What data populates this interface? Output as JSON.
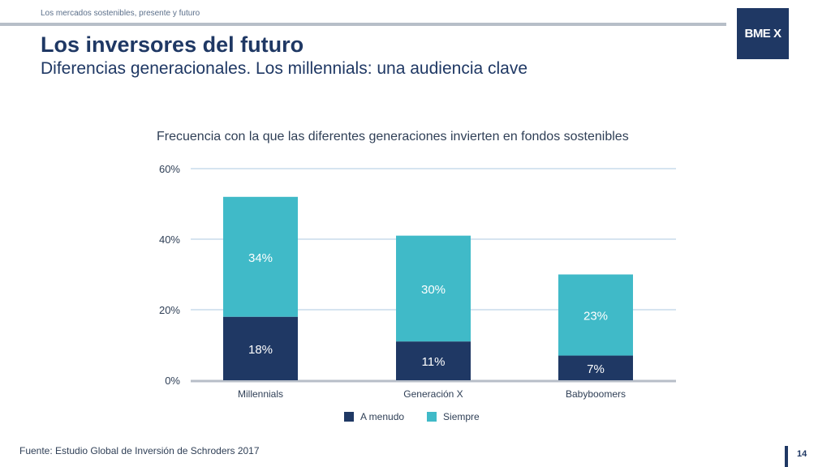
{
  "header": {
    "caption": "Los mercados sostenibles, presente y futuro",
    "title": "Los inversores del futuro",
    "subtitle": "Diferencias generacionales. Los millennials: una audiencia clave",
    "logo_text": "BME X"
  },
  "chart_data": {
    "type": "bar",
    "stacked": true,
    "title": "Frecuencia con la que las diferentes generaciones invierten en fondos sostenibles",
    "categories": [
      "Millennials",
      "Generación X",
      "Babyboomers"
    ],
    "series": [
      {
        "name": "A menudo",
        "values": [
          18,
          11,
          7
        ],
        "labels": [
          "18%",
          "11%",
          "7%"
        ],
        "color": "#1f3864"
      },
      {
        "name": "Siempre",
        "values": [
          34,
          30,
          23
        ],
        "labels": [
          "34%",
          "30%",
          "23%"
        ],
        "color": "#40bac8"
      }
    ],
    "ylim": [
      0,
      60
    ],
    "yticks": [
      0,
      20,
      40,
      60
    ],
    "ytick_labels": [
      "0%",
      "20%",
      "40%",
      "60%"
    ],
    "grid": true,
    "legend": "bottom"
  },
  "footer": {
    "source": "Fuente: Estudio Global de Inversión de Schroders 2017",
    "page_number": "14"
  },
  "colors": {
    "navy": "#1f3864",
    "teal": "#40bac8",
    "grid": "#d6e4f0",
    "rule": "#b7bec8"
  }
}
